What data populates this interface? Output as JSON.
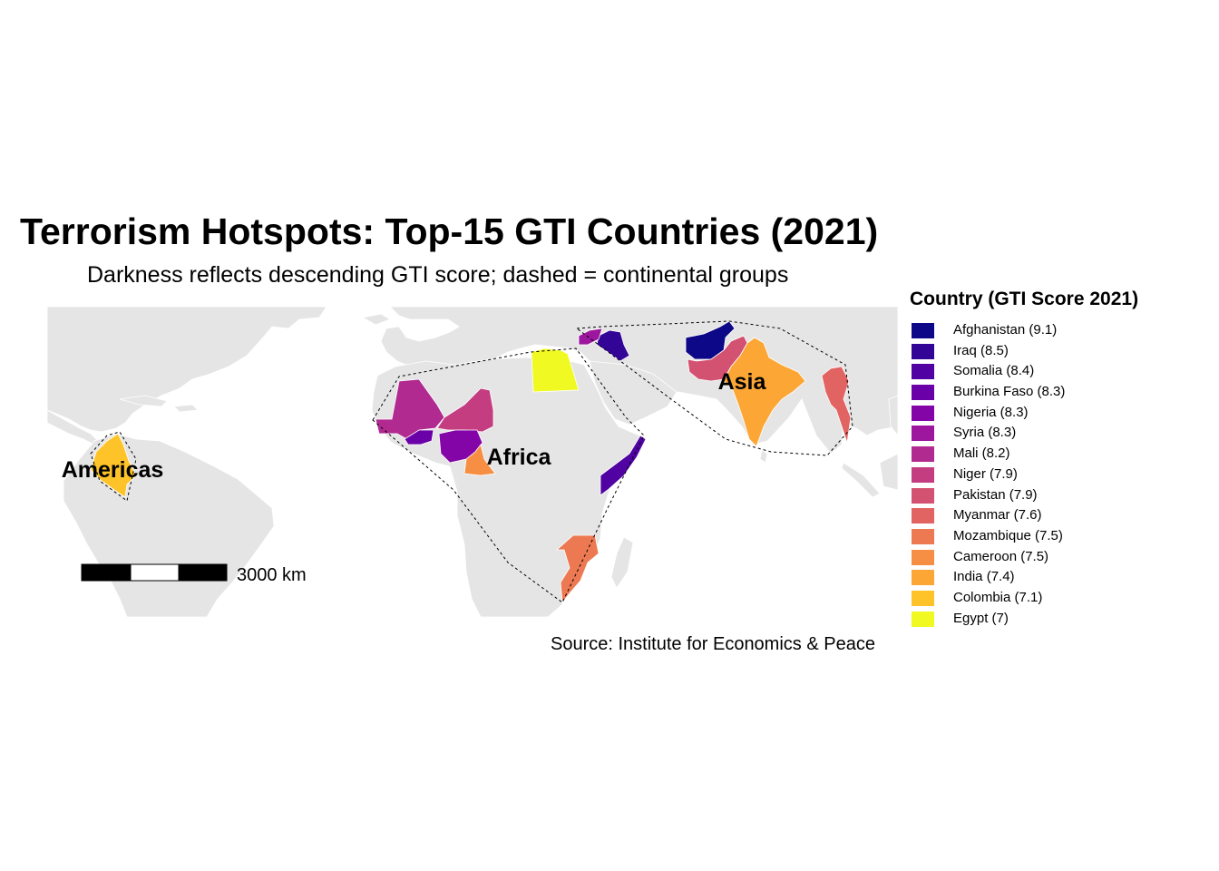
{
  "title": "Terrorism Hotspots: Top-15 GTI Countries (2021)",
  "subtitle": "Darkness reflects descending GTI score; dashed = continental groups",
  "caption": "Source: Institute for Economics & Peace",
  "legend": {
    "title": "Country (GTI Score 2021)",
    "items": [
      {
        "label": "Afghanistan (9.1)",
        "color": "#0d0887"
      },
      {
        "label": "Iraq (8.5)",
        "color": "#330597"
      },
      {
        "label": "Somalia (8.4)",
        "color": "#5002a2"
      },
      {
        "label": "Burkina Faso (8.3)",
        "color": "#6a00a8"
      },
      {
        "label": "Nigeria (8.3)",
        "color": "#8405a7"
      },
      {
        "label": "Syria (8.3)",
        "color": "#9c179e"
      },
      {
        "label": "Mali (8.2)",
        "color": "#b12a90"
      },
      {
        "label": "Niger (7.9)",
        "color": "#c33d80"
      },
      {
        "label": "Pakistan (7.9)",
        "color": "#d35171"
      },
      {
        "label": "Myanmar (7.6)",
        "color": "#e16462"
      },
      {
        "label": "Mozambique (7.5)",
        "color": "#ed7953"
      },
      {
        "label": "Cameroon (7.5)",
        "color": "#f68f44"
      },
      {
        "label": "India (7.4)",
        "color": "#fca636"
      },
      {
        "label": "Colombia (7.1)",
        "color": "#fdc328"
      },
      {
        "label": "Egypt (7)",
        "color": "#f0f921"
      }
    ]
  },
  "region_labels": {
    "americas": "Americas",
    "africa": "Africa",
    "asia": "Asia"
  },
  "scale_bar": {
    "label": "3000 km"
  },
  "colors": {
    "land": "#e5e5e5",
    "border": "#ffffff"
  }
}
